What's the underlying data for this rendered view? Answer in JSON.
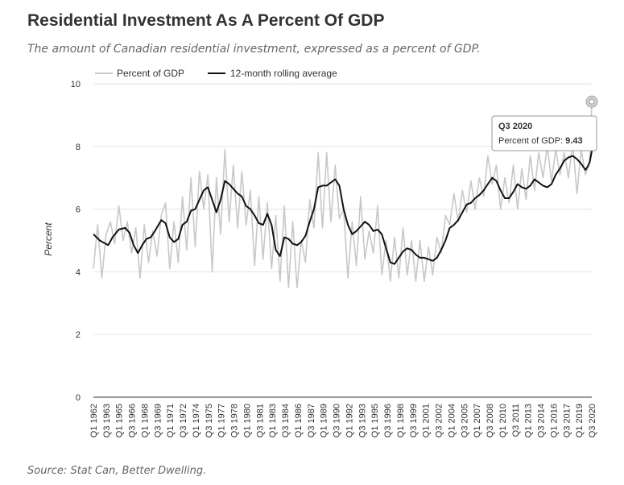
{
  "chart_data": {
    "type": "line",
    "title": "Residential Investment As A Percent Of GDP",
    "subtitle": "The amount of Canadian residential investment, expressed as a percent of GDP.",
    "source": "Source: Stat Can, Better Dwelling.",
    "xlabel": "",
    "ylabel": "Percent",
    "ylim": [
      0,
      10
    ],
    "yticks": [
      0,
      2,
      4,
      6,
      8,
      10
    ],
    "x_start": "Q1 1962",
    "x_end": "Q3 2020",
    "x_tick_labels": [
      "Q1 1962",
      "Q3 1963",
      "Q1 1965",
      "Q3 1966",
      "Q1 1968",
      "Q3 1969",
      "Q1 1971",
      "Q3 1972",
      "Q1 1974",
      "Q3 1975",
      "Q1 1977",
      "Q3 1978",
      "Q1 1980",
      "Q3 1981",
      "Q1 1983",
      "Q3 1984",
      "Q1 1986",
      "Q3 1987",
      "Q1 1989",
      "Q3 1990",
      "Q1 1992",
      "Q3 1993",
      "Q1 1995",
      "Q3 1996",
      "Q1 1998",
      "Q3 1999",
      "Q1 2001",
      "Q3 2002",
      "Q1 2004",
      "Q3 2005",
      "Q1 2007",
      "Q3 2008",
      "Q1 2010",
      "Q3 2011",
      "Q1 2013",
      "Q3 2014",
      "Q1 2016",
      "Q3 2017",
      "Q1 2019",
      "Q3 2020"
    ],
    "legend": [
      "Percent of GDP",
      "12-month rolling average"
    ],
    "legend_position": "top-left",
    "grid": true,
    "series": [
      {
        "name": "Percent of GDP",
        "color": "#c8c8c8",
        "anchors": [
          [
            0,
            4.1
          ],
          [
            2,
            5.5
          ],
          [
            4,
            3.8
          ],
          [
            6,
            5.2
          ],
          [
            8,
            5.6
          ],
          [
            10,
            4.9
          ],
          [
            12,
            6.1
          ],
          [
            14,
            5.0
          ],
          [
            16,
            5.6
          ],
          [
            18,
            4.6
          ],
          [
            20,
            5.4
          ],
          [
            22,
            3.8
          ],
          [
            24,
            5.5
          ],
          [
            26,
            4.3
          ],
          [
            28,
            5.3
          ],
          [
            30,
            4.5
          ],
          [
            32,
            5.8
          ],
          [
            34,
            6.2
          ],
          [
            36,
            4.1
          ],
          [
            38,
            5.6
          ],
          [
            40,
            4.3
          ],
          [
            42,
            6.4
          ],
          [
            44,
            4.7
          ],
          [
            46,
            7.0
          ],
          [
            48,
            4.8
          ],
          [
            50,
            7.2
          ],
          [
            52,
            6.0
          ],
          [
            54,
            7.1
          ],
          [
            56,
            4.0
          ],
          [
            58,
            7.0
          ],
          [
            60,
            5.2
          ],
          [
            62,
            7.9
          ],
          [
            64,
            5.6
          ],
          [
            66,
            7.4
          ],
          [
            68,
            5.4
          ],
          [
            70,
            7.2
          ],
          [
            72,
            5.5
          ],
          [
            74,
            6.6
          ],
          [
            76,
            4.2
          ],
          [
            78,
            6.4
          ],
          [
            80,
            4.4
          ],
          [
            82,
            6.2
          ],
          [
            84,
            4.1
          ],
          [
            86,
            5.8
          ],
          [
            88,
            3.7
          ],
          [
            90,
            6.1
          ],
          [
            92,
            3.5
          ],
          [
            94,
            5.6
          ],
          [
            96,
            3.5
          ],
          [
            98,
            5.0
          ],
          [
            100,
            4.3
          ],
          [
            102,
            6.3
          ],
          [
            104,
            5.4
          ],
          [
            106,
            7.8
          ],
          [
            108,
            5.4
          ],
          [
            110,
            7.8
          ],
          [
            112,
            5.6
          ],
          [
            114,
            7.4
          ],
          [
            116,
            5.7
          ],
          [
            118,
            6.0
          ],
          [
            120,
            3.8
          ],
          [
            122,
            5.6
          ],
          [
            124,
            4.2
          ],
          [
            126,
            6.4
          ],
          [
            128,
            4.4
          ],
          [
            130,
            5.3
          ],
          [
            132,
            4.6
          ],
          [
            134,
            6.1
          ],
          [
            136,
            3.9
          ],
          [
            138,
            5.0
          ],
          [
            140,
            3.7
          ],
          [
            142,
            5.1
          ],
          [
            144,
            3.8
          ],
          [
            146,
            5.4
          ],
          [
            148,
            3.9
          ],
          [
            150,
            5.0
          ],
          [
            152,
            3.7
          ],
          [
            154,
            5.0
          ],
          [
            156,
            3.7
          ],
          [
            158,
            4.8
          ],
          [
            160,
            3.9
          ],
          [
            162,
            5.1
          ],
          [
            164,
            4.6
          ],
          [
            166,
            5.8
          ],
          [
            168,
            5.5
          ],
          [
            170,
            6.5
          ],
          [
            172,
            5.6
          ],
          [
            174,
            6.6
          ],
          [
            176,
            5.9
          ],
          [
            178,
            6.9
          ],
          [
            180,
            6.0
          ],
          [
            182,
            7.0
          ],
          [
            184,
            6.4
          ],
          [
            186,
            7.7
          ],
          [
            188,
            6.8
          ],
          [
            190,
            7.4
          ],
          [
            192,
            6.0
          ],
          [
            194,
            7.0
          ],
          [
            196,
            6.2
          ],
          [
            198,
            7.4
          ],
          [
            200,
            6.0
          ],
          [
            202,
            7.3
          ],
          [
            204,
            6.3
          ],
          [
            206,
            7.7
          ],
          [
            208,
            6.6
          ],
          [
            210,
            7.8
          ],
          [
            212,
            7.0
          ],
          [
            214,
            8.0
          ],
          [
            216,
            6.9
          ],
          [
            218,
            7.9
          ],
          [
            220,
            7.1
          ],
          [
            222,
            7.8
          ],
          [
            224,
            7.0
          ],
          [
            226,
            8.1
          ],
          [
            228,
            6.5
          ],
          [
            230,
            7.9
          ],
          [
            232,
            7.1
          ],
          [
            234,
            7.5
          ],
          [
            235,
            9.43
          ]
        ]
      },
      {
        "name": "12-month rolling average",
        "color": "#111111",
        "anchors": [
          [
            0,
            5.2
          ],
          [
            3,
            5.0
          ],
          [
            7,
            4.85
          ],
          [
            9,
            5.1
          ],
          [
            12,
            5.35
          ],
          [
            15,
            5.4
          ],
          [
            17,
            5.25
          ],
          [
            19,
            4.85
          ],
          [
            21,
            4.6
          ],
          [
            23,
            4.85
          ],
          [
            25,
            5.05
          ],
          [
            27,
            5.1
          ],
          [
            29,
            5.3
          ],
          [
            32,
            5.65
          ],
          [
            34,
            5.55
          ],
          [
            36,
            5.1
          ],
          [
            38,
            4.95
          ],
          [
            40,
            5.05
          ],
          [
            42,
            5.5
          ],
          [
            44,
            5.6
          ],
          [
            46,
            5.95
          ],
          [
            48,
            6.0
          ],
          [
            50,
            6.3
          ],
          [
            52,
            6.6
          ],
          [
            54,
            6.7
          ],
          [
            56,
            6.3
          ],
          [
            58,
            5.9
          ],
          [
            60,
            6.3
          ],
          [
            62,
            6.9
          ],
          [
            64,
            6.8
          ],
          [
            66,
            6.65
          ],
          [
            68,
            6.5
          ],
          [
            70,
            6.4
          ],
          [
            72,
            6.1
          ],
          [
            74,
            6.0
          ],
          [
            76,
            5.8
          ],
          [
            78,
            5.55
          ],
          [
            80,
            5.5
          ],
          [
            82,
            5.85
          ],
          [
            84,
            5.5
          ],
          [
            86,
            4.7
          ],
          [
            88,
            4.5
          ],
          [
            90,
            5.1
          ],
          [
            92,
            5.05
          ],
          [
            94,
            4.9
          ],
          [
            96,
            4.85
          ],
          [
            98,
            4.95
          ],
          [
            100,
            5.15
          ],
          [
            102,
            5.6
          ],
          [
            104,
            6.0
          ],
          [
            106,
            6.7
          ],
          [
            108,
            6.75
          ],
          [
            110,
            6.75
          ],
          [
            112,
            6.85
          ],
          [
            114,
            6.95
          ],
          [
            116,
            6.75
          ],
          [
            118,
            6.0
          ],
          [
            120,
            5.5
          ],
          [
            122,
            5.2
          ],
          [
            124,
            5.3
          ],
          [
            126,
            5.45
          ],
          [
            128,
            5.6
          ],
          [
            130,
            5.5
          ],
          [
            132,
            5.3
          ],
          [
            134,
            5.35
          ],
          [
            136,
            5.2
          ],
          [
            138,
            4.75
          ],
          [
            140,
            4.3
          ],
          [
            142,
            4.25
          ],
          [
            144,
            4.45
          ],
          [
            146,
            4.65
          ],
          [
            148,
            4.75
          ],
          [
            150,
            4.7
          ],
          [
            152,
            4.55
          ],
          [
            154,
            4.45
          ],
          [
            156,
            4.45
          ],
          [
            158,
            4.4
          ],
          [
            160,
            4.35
          ],
          [
            162,
            4.45
          ],
          [
            164,
            4.7
          ],
          [
            166,
            5.0
          ],
          [
            168,
            5.4
          ],
          [
            170,
            5.5
          ],
          [
            172,
            5.65
          ],
          [
            174,
            5.9
          ],
          [
            176,
            6.15
          ],
          [
            178,
            6.2
          ],
          [
            180,
            6.35
          ],
          [
            182,
            6.45
          ],
          [
            184,
            6.6
          ],
          [
            186,
            6.8
          ],
          [
            188,
            7.0
          ],
          [
            190,
            6.9
          ],
          [
            192,
            6.6
          ],
          [
            194,
            6.35
          ],
          [
            196,
            6.35
          ],
          [
            198,
            6.55
          ],
          [
            200,
            6.8
          ],
          [
            202,
            6.7
          ],
          [
            204,
            6.65
          ],
          [
            206,
            6.75
          ],
          [
            208,
            6.95
          ],
          [
            210,
            6.85
          ],
          [
            212,
            6.75
          ],
          [
            214,
            6.7
          ],
          [
            216,
            6.8
          ],
          [
            218,
            7.1
          ],
          [
            220,
            7.3
          ],
          [
            222,
            7.55
          ],
          [
            224,
            7.65
          ],
          [
            226,
            7.7
          ],
          [
            228,
            7.6
          ],
          [
            230,
            7.45
          ],
          [
            232,
            7.25
          ],
          [
            233,
            7.35
          ],
          [
            234,
            7.5
          ],
          [
            235,
            7.85
          ]
        ]
      }
    ],
    "tooltip": {
      "header": "Q3 2020",
      "label": "Percent of GDP: ",
      "value": "9.43",
      "point_index": 235,
      "point_value": 9.43
    }
  }
}
